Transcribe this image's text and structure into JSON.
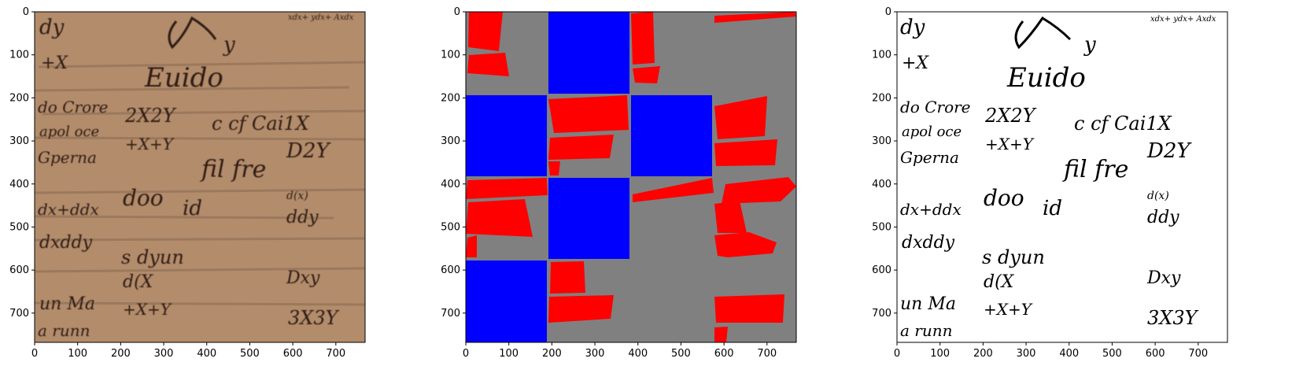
{
  "panels": [
    {
      "id": "original",
      "kind": "image",
      "description_colors": {
        "background": "#b38c6b",
        "ink": "#2d1e14"
      },
      "x_ticks": [
        "0",
        "100",
        "200",
        "300",
        "400",
        "500",
        "600",
        "700"
      ],
      "y_ticks": [
        "0",
        "100",
        "200",
        "300",
        "400",
        "500",
        "600",
        "700"
      ],
      "extent": [
        0,
        768
      ]
    },
    {
      "id": "segmentation",
      "kind": "mask",
      "description_colors": {
        "background": "#808080",
        "text_region": "#ff0000",
        "block": "#0000ff"
      },
      "x_ticks": [
        "0",
        "100",
        "200",
        "300",
        "400",
        "500",
        "600",
        "700"
      ],
      "y_ticks": [
        "0",
        "100",
        "200",
        "300",
        "400",
        "500",
        "600",
        "700"
      ],
      "extent": [
        0,
        768
      ]
    },
    {
      "id": "binarized",
      "kind": "image",
      "description_colors": {
        "background": "#ffffff",
        "ink": "#000000"
      },
      "x_ticks": [
        "0",
        "100",
        "200",
        "300",
        "400",
        "500",
        "600",
        "700"
      ],
      "y_ticks": [
        "0",
        "100",
        "200",
        "300",
        "400",
        "500",
        "600",
        "700"
      ],
      "extent": [
        0,
        768
      ]
    }
  ],
  "manuscript_text": {
    "top_right": "xdx+ ydx+ Axdx",
    "row1": [
      "dy",
      "+X",
      "Euido",
      "y"
    ],
    "row2": [
      "do Crore",
      "2X2Y",
      "apol oce",
      "c cf Cai1X"
    ],
    "row3": [
      "Gperna",
      "+X+Y",
      "D2Y",
      "fil fre"
    ],
    "row4": [
      "dx+ddx",
      "doo",
      "id",
      "d(x)"
    ],
    "row5": [
      "dxddy",
      "s dyun",
      "ddy"
    ],
    "row6": [
      "un Ma",
      "d(X",
      "+X+Y",
      "3X3Y",
      "a runn"
    ]
  }
}
